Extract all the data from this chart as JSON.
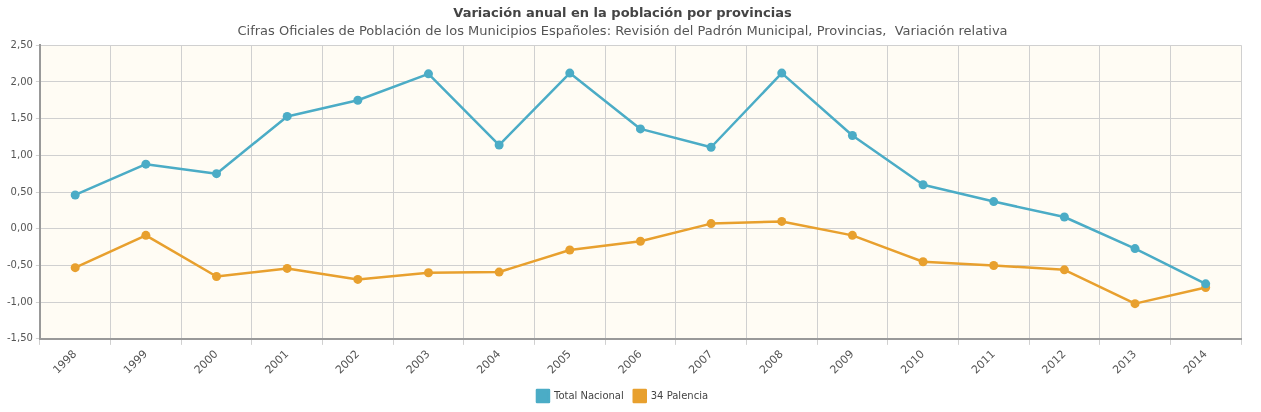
{
  "chart_data": {
    "type": "line",
    "title": "Variación anual en la población por provincias",
    "subtitle": "Cifras Oficiales de Población de los Municipios Españoles: Revisión del Padrón Municipal, Provincias,  Variación relativa",
    "categories": [
      "1998",
      "1999",
      "2000",
      "2001",
      "2002",
      "2003",
      "2004",
      "2005",
      "2006",
      "2007",
      "2008",
      "2009",
      "2010",
      "2011",
      "2012",
      "2013",
      "2014"
    ],
    "series": [
      {
        "name": "Total Nacional",
        "color": "#4bacc6",
        "values": [
          0.46,
          0.88,
          0.75,
          1.53,
          1.75,
          2.11,
          1.14,
          2.12,
          1.36,
          1.11,
          2.12,
          1.27,
          0.6,
          0.37,
          0.16,
          -0.27,
          -0.75
        ]
      },
      {
        "name": "34 Palencia",
        "color": "#e8a02e",
        "values": [
          -0.53,
          -0.09,
          -0.65,
          -0.54,
          -0.69,
          -0.6,
          -0.59,
          -0.29,
          -0.17,
          0.07,
          0.1,
          -0.09,
          -0.45,
          -0.5,
          -0.56,
          -1.02,
          -0.8
        ]
      }
    ],
    "ylim": [
      -1.5,
      2.5
    ],
    "yticks": [
      {
        "value": -1.5,
        "label": "-1,50"
      },
      {
        "value": -1,
        "label": "-1,00"
      },
      {
        "value": -0.5,
        "label": "-0,50"
      },
      {
        "value": 0,
        "label": "0,00"
      },
      {
        "value": 0.5,
        "label": "0,50"
      },
      {
        "value": 1,
        "label": "1,00"
      },
      {
        "value": 1.5,
        "label": "1,50"
      },
      {
        "value": 2,
        "label": "2,00"
      },
      {
        "value": 2.5,
        "label": "2,50"
      }
    ],
    "grid": true,
    "legend": "bottom",
    "marker": "circle",
    "line_style": "solid"
  }
}
